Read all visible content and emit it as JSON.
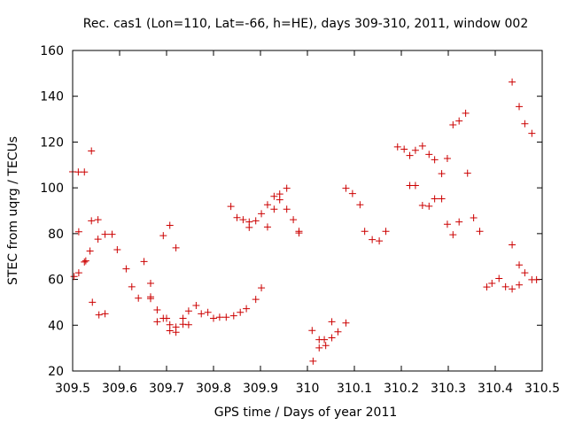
{
  "chart_data": {
    "type": "scatter",
    "title": "Rec. cas1 (Lon=110, Lat=-66, h=HE), days 309-310, 2011, window 002",
    "xlabel": "GPS time / Days of year 2011",
    "ylabel": "STEC from uqrg / TECUs",
    "xlim": [
      309.5,
      310.5
    ],
    "ylim": [
      20,
      160
    ],
    "x_ticks": [
      309.5,
      309.6,
      309.7,
      309.8,
      309.9,
      310.0,
      310.1,
      310.2,
      310.3,
      310.4,
      310.5
    ],
    "x_tick_labels": [
      "309.5",
      "309.6",
      "309.7",
      "309.8",
      "309.9",
      "310",
      "310.1",
      "310.2",
      "310.3",
      "310.4",
      "310.5"
    ],
    "y_ticks": [
      20,
      40,
      60,
      80,
      100,
      120,
      140,
      160
    ],
    "y_tick_labels": [
      "20",
      "40",
      "60",
      "80",
      "100",
      "120",
      "140",
      "160"
    ],
    "grid": false,
    "legend": "none",
    "marker": "plus",
    "series": [
      {
        "color": "#cc0000",
        "points": [
          [
            309.5,
            107.0
          ],
          [
            309.503,
            61.3
          ],
          [
            309.512,
            106.9
          ],
          [
            309.513,
            62.9
          ],
          [
            309.513,
            80.8
          ],
          [
            309.525,
            106.9
          ],
          [
            309.525,
            67.6
          ],
          [
            309.528,
            68.1
          ],
          [
            309.537,
            72.4
          ],
          [
            309.54,
            85.6
          ],
          [
            309.54,
            116.1
          ],
          [
            309.542,
            50.0
          ],
          [
            309.554,
            86.1
          ],
          [
            309.554,
            77.6
          ],
          [
            309.556,
            44.5
          ],
          [
            309.569,
            79.7
          ],
          [
            309.569,
            45.0
          ],
          [
            309.584,
            79.7
          ],
          [
            309.595,
            73.0
          ],
          [
            309.614,
            64.6
          ],
          [
            309.626,
            56.8
          ],
          [
            309.64,
            51.8
          ],
          [
            309.652,
            67.8
          ],
          [
            309.666,
            58.3
          ],
          [
            309.666,
            52.4
          ],
          [
            309.666,
            51.6
          ],
          [
            309.68,
            46.7
          ],
          [
            309.68,
            41.5
          ],
          [
            309.693,
            79.1
          ],
          [
            309.693,
            43.0
          ],
          [
            309.7,
            43.0
          ],
          [
            309.707,
            83.6
          ],
          [
            309.707,
            40.2
          ],
          [
            309.707,
            37.6
          ],
          [
            309.72,
            73.8
          ],
          [
            309.72,
            39.2
          ],
          [
            309.72,
            36.9
          ],
          [
            309.735,
            43.0
          ],
          [
            309.735,
            40.4
          ],
          [
            309.747,
            46.2
          ],
          [
            309.747,
            40.2
          ],
          [
            309.763,
            48.6
          ],
          [
            309.774,
            45.0
          ],
          [
            309.788,
            45.6
          ],
          [
            309.8,
            43.0
          ],
          [
            309.813,
            43.5
          ],
          [
            309.827,
            43.5
          ],
          [
            309.837,
            91.9
          ],
          [
            309.843,
            44.1
          ],
          [
            309.85,
            87.0
          ],
          [
            309.857,
            45.6
          ],
          [
            309.863,
            86.1
          ],
          [
            309.87,
            47.2
          ],
          [
            309.876,
            85.1
          ],
          [
            309.876,
            82.7
          ],
          [
            309.89,
            85.6
          ],
          [
            309.89,
            51.3
          ],
          [
            309.902,
            88.7
          ],
          [
            309.902,
            56.3
          ],
          [
            309.915,
            82.9
          ],
          [
            309.915,
            92.6
          ],
          [
            309.929,
            96.3
          ],
          [
            309.929,
            90.7
          ],
          [
            309.941,
            97.3
          ],
          [
            309.941,
            94.8
          ],
          [
            309.956,
            99.8
          ],
          [
            309.956,
            90.7
          ],
          [
            309.97,
            86.1
          ],
          [
            309.982,
            81.0
          ],
          [
            309.982,
            80.3
          ],
          [
            310.01,
            37.7
          ],
          [
            310.012,
            24.3
          ],
          [
            310.025,
            33.7
          ],
          [
            310.025,
            30.1
          ],
          [
            310.036,
            33.7
          ],
          [
            310.039,
            31.1
          ],
          [
            310.052,
            34.5
          ],
          [
            310.052,
            41.5
          ],
          [
            310.065,
            37.1
          ],
          [
            310.082,
            41.0
          ],
          [
            310.082,
            99.8
          ],
          [
            310.096,
            97.5
          ],
          [
            310.112,
            92.6
          ],
          [
            310.122,
            81.0
          ],
          [
            310.138,
            77.4
          ],
          [
            310.153,
            76.8
          ],
          [
            310.167,
            81.0
          ],
          [
            310.192,
            117.9
          ],
          [
            310.206,
            116.9
          ],
          [
            310.218,
            114.1
          ],
          [
            310.218,
            101.0
          ],
          [
            310.23,
            116.4
          ],
          [
            310.23,
            101.0
          ],
          [
            310.245,
            118.3
          ],
          [
            310.245,
            92.3
          ],
          [
            310.259,
            114.6
          ],
          [
            310.259,
            92.0
          ],
          [
            310.271,
            112.3
          ],
          [
            310.271,
            95.2
          ],
          [
            310.286,
            106.2
          ],
          [
            310.286,
            95.2
          ],
          [
            310.298,
            112.8
          ],
          [
            310.298,
            84.1
          ],
          [
            310.31,
            127.5
          ],
          [
            310.31,
            79.5
          ],
          [
            310.323,
            129.2
          ],
          [
            310.323,
            85.1
          ],
          [
            310.337,
            132.6
          ],
          [
            310.341,
            106.4
          ],
          [
            310.354,
            86.9
          ],
          [
            310.367,
            81.0
          ],
          [
            310.382,
            56.7
          ],
          [
            310.393,
            58.3
          ],
          [
            310.408,
            60.4
          ],
          [
            310.422,
            56.8
          ],
          [
            310.436,
            55.8
          ],
          [
            310.436,
            75.1
          ],
          [
            310.436,
            146.2
          ],
          [
            310.451,
            66.3
          ],
          [
            310.451,
            57.6
          ],
          [
            310.451,
            135.5
          ],
          [
            310.463,
            62.9
          ],
          [
            310.463,
            128.0
          ],
          [
            310.478,
            59.9
          ],
          [
            310.478,
            123.8
          ],
          [
            310.488,
            59.9
          ]
        ]
      }
    ]
  }
}
